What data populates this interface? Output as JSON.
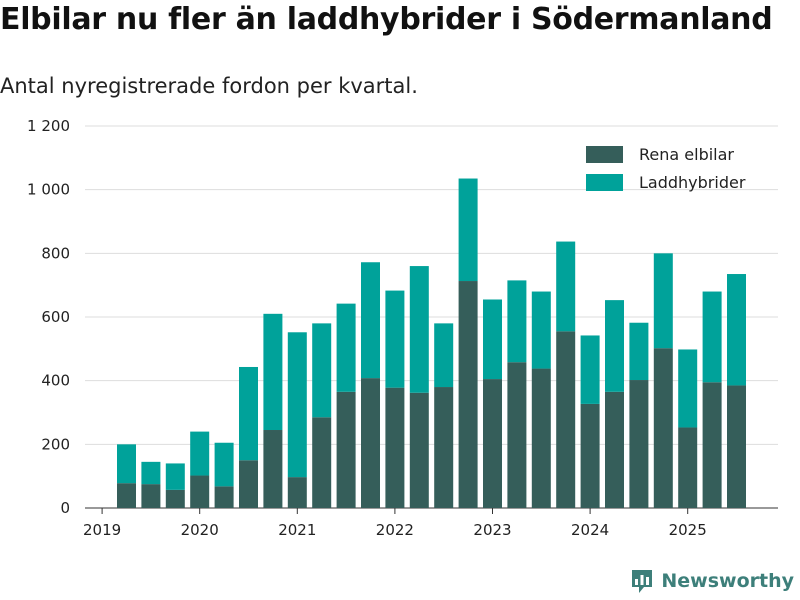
{
  "chart_data": {
    "type": "bar",
    "stacked": true,
    "title": "Elbilar nu fler än laddhybrider i Södermanland",
    "subtitle": "Antal nyregistrerade fordon per kvartal.",
    "xlabel": "",
    "ylabel": "",
    "ylim": [
      0,
      1200
    ],
    "yticks": [
      0,
      200,
      400,
      600,
      800,
      1000,
      1200
    ],
    "ytick_labels": [
      "0",
      "200",
      "400",
      "600",
      "800",
      "1 000",
      "1 200"
    ],
    "xticks": [
      "2019",
      "2020",
      "2021",
      "2022",
      "2023",
      "2024",
      "2025"
    ],
    "categories": [
      "2019 Q2",
      "2019 Q3",
      "2019 Q4",
      "2020 Q1",
      "2020 Q2",
      "2020 Q3",
      "2020 Q4",
      "2021 Q1",
      "2021 Q2",
      "2021 Q3",
      "2021 Q4",
      "2022 Q1",
      "2022 Q2",
      "2022 Q3",
      "2022 Q4",
      "2023 Q1",
      "2023 Q2",
      "2023 Q3",
      "2023 Q4",
      "2024 Q1",
      "2024 Q2",
      "2024 Q3",
      "2024 Q4",
      "2025 Q1",
      "2025 Q2",
      "2025 Q3"
    ],
    "series": [
      {
        "name": "Rena elbilar",
        "color": "#355e5a",
        "values": [
          78,
          75,
          57,
          102,
          68,
          150,
          245,
          97,
          285,
          365,
          408,
          378,
          362,
          380,
          713,
          405,
          458,
          438,
          555,
          327,
          365,
          402,
          502,
          253,
          395,
          385
        ]
      },
      {
        "name": "Laddhybrider",
        "color": "#00a29a",
        "values": [
          122,
          70,
          83,
          138,
          137,
          293,
          365,
          455,
          295,
          277,
          364,
          305,
          398,
          200,
          322,
          250,
          257,
          242,
          282,
          215,
          288,
          180,
          298,
          245,
          285,
          350
        ]
      }
    ],
    "legend_position": "top-right",
    "grid": true
  },
  "brand": {
    "name": "Newsworthy"
  }
}
